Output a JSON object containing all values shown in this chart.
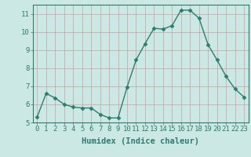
{
  "x": [
    0,
    1,
    2,
    3,
    4,
    5,
    6,
    7,
    8,
    9,
    10,
    11,
    12,
    13,
    14,
    15,
    16,
    17,
    18,
    19,
    20,
    21,
    22,
    23
  ],
  "y": [
    5.3,
    6.6,
    6.35,
    6.0,
    5.85,
    5.8,
    5.8,
    5.45,
    5.25,
    5.25,
    6.95,
    8.45,
    9.35,
    10.2,
    10.15,
    10.35,
    11.2,
    11.2,
    10.75,
    9.3,
    8.45,
    7.55,
    6.85,
    6.4
  ],
  "line_color": "#2d7d6e",
  "marker": "D",
  "marker_size": 2.5,
  "linewidth": 1.0,
  "bg_color": "#cce8e4",
  "grid_color": "#c8a0a0",
  "xlabel": "Humidex (Indice chaleur)",
  "ylim": [
    5,
    11.5
  ],
  "xlim": [
    -0.5,
    23.5
  ],
  "yticks": [
    5,
    6,
    7,
    8,
    9,
    10,
    11
  ],
  "xticks": [
    0,
    1,
    2,
    3,
    4,
    5,
    6,
    7,
    8,
    9,
    10,
    11,
    12,
    13,
    14,
    15,
    16,
    17,
    18,
    19,
    20,
    21,
    22,
    23
  ],
  "xtick_labels": [
    "0",
    "1",
    "2",
    "3",
    "4",
    "5",
    "6",
    "7",
    "8",
    "9",
    "10",
    "11",
    "12",
    "13",
    "14",
    "15",
    "16",
    "17",
    "18",
    "19",
    "20",
    "21",
    "22",
    "23"
  ],
  "tick_fontsize": 6.5,
  "label_fontsize": 7.5,
  "axis_color": "#2d7d6e",
  "spine_color": "#2d7d6e"
}
